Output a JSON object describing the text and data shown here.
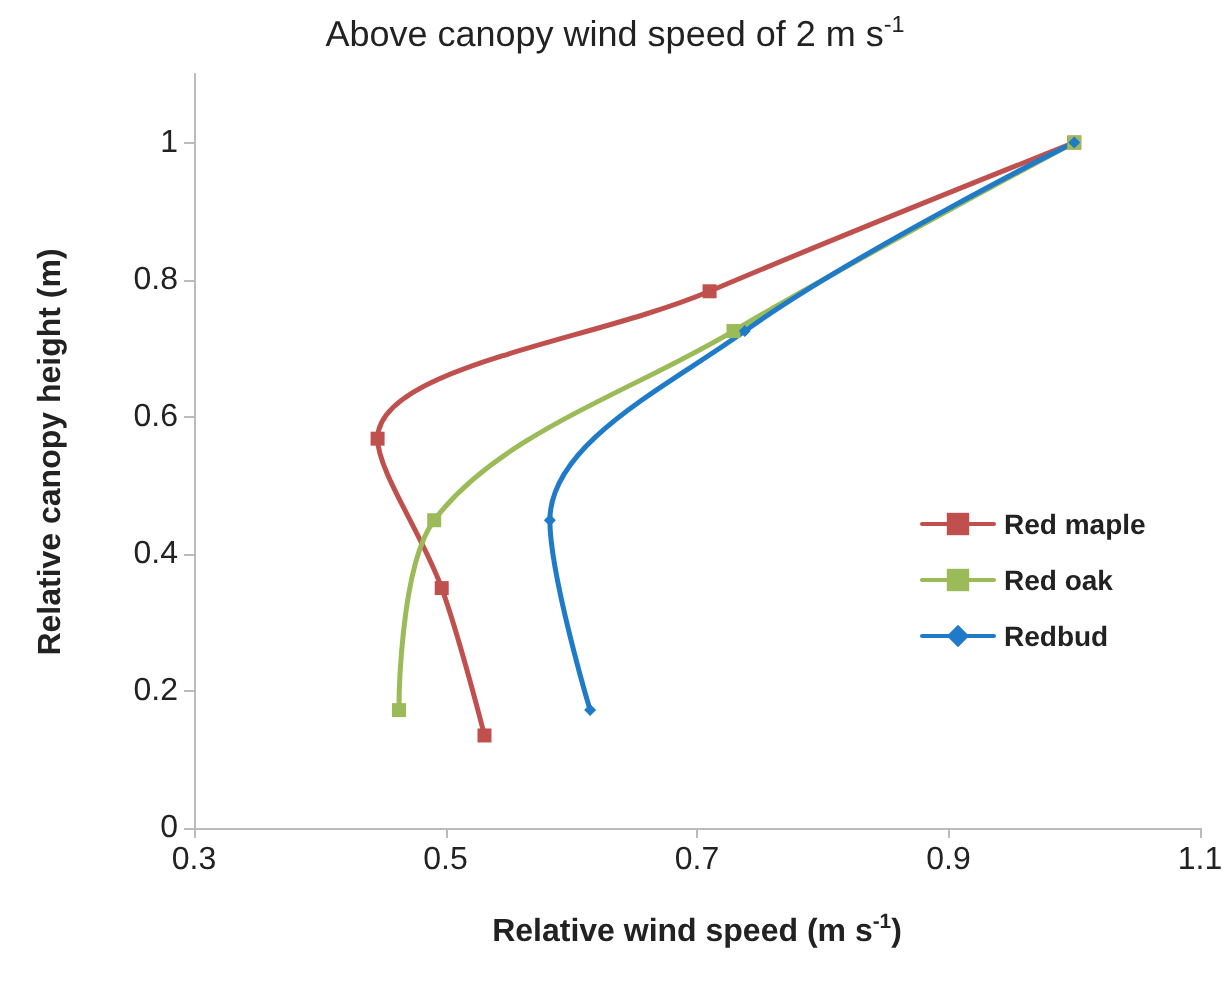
{
  "chart_data": {
    "type": "line",
    "title": "Above canopy wind speed of 2 m s$^{-1}$",
    "xlabel": "Relative wind speed (m s$^{-1}$)",
    "ylabel": "Relative canopy height (m)",
    "xlim": [
      0.3,
      1.1
    ],
    "xticks": [
      0.3,
      0.5,
      0.7,
      0.9,
      1.1
    ],
    "ylim": [
      0,
      1.1
    ],
    "yticks": [
      0,
      0.2,
      0.4,
      0.6,
      0.8,
      1
    ],
    "grid": false,
    "legend": "right",
    "marker": "square",
    "series": [
      {
        "name": "Red maple",
        "color": "#c0504d",
        "x": [
          1.0,
          0.71,
          0.446,
          0.497,
          0.531
        ],
        "values": [
          1.0,
          0.783,
          0.568,
          0.35,
          0.135
        ]
      },
      {
        "name": "Red oak",
        "color": "#9bbb59",
        "x": [
          1.0,
          0.729,
          0.491,
          0.463
        ],
        "values": [
          1.0,
          0.725,
          0.449,
          0.172
        ]
      },
      {
        "name": "Redbud",
        "color": "#1f7ac8",
        "marker": "diamond",
        "x": [
          1.0,
          0.738,
          0.583,
          0.615
        ],
        "values": [
          1.0,
          0.725,
          0.449,
          0.172
        ]
      }
    ]
  }
}
